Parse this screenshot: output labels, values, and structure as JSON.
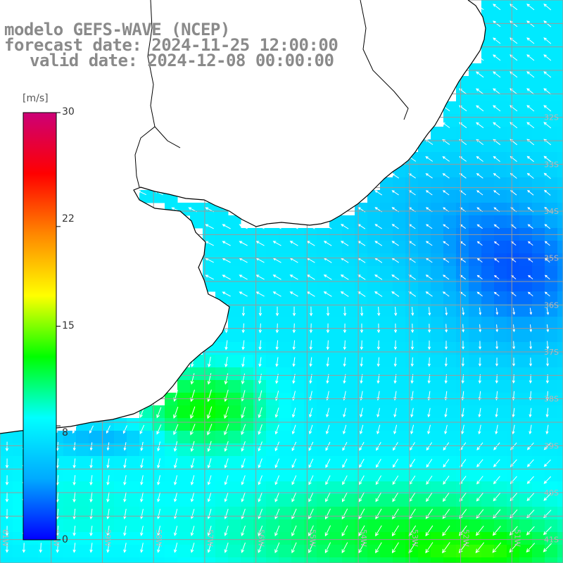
{
  "title": {
    "line1": "modelo GEFS-WAVE (NCEP)",
    "line2": "forecast date: 2024-11-25 12:00:00",
    "line3": "valid date: 2024-12-08 00:00:00"
  },
  "legend": {
    "unit": "[m/s]",
    "ticks": [
      "30",
      "22",
      "15",
      "8",
      "0"
    ],
    "tick_values": [
      30,
      22,
      15,
      8,
      0
    ],
    "min": 0,
    "max": 30,
    "colormap": [
      "#0000ff",
      "#00aaff",
      "#00ffff",
      "#00ff00",
      "#ffff00",
      "#ff8800",
      "#ff0000",
      "#cc0077"
    ]
  },
  "map": {
    "lon_range": [
      -61,
      -50
    ],
    "lat_range": [
      -41.5,
      -29.5
    ],
    "lat_labels": [
      "32S",
      "33S",
      "34S",
      "35S",
      "36S",
      "37S",
      "38S",
      "39S",
      "40S",
      "41S"
    ],
    "lat_values": [
      -32,
      -33,
      -34,
      -35,
      -36,
      -37,
      -38,
      -39,
      -40,
      -41
    ],
    "lon_labels": [
      "61W",
      "60W",
      "59W",
      "58W",
      "57W",
      "56W",
      "55W",
      "54W",
      "53W",
      "52W",
      "51W"
    ],
    "lon_values": [
      -61,
      -60,
      -59,
      -58,
      -57,
      -56,
      -55,
      -54,
      -53,
      -52,
      -51
    ],
    "land_color": "#ffffff",
    "grid_color": "#9a9a9a",
    "coast_color": "#000000",
    "arrow_color": "#ffffff"
  }
}
